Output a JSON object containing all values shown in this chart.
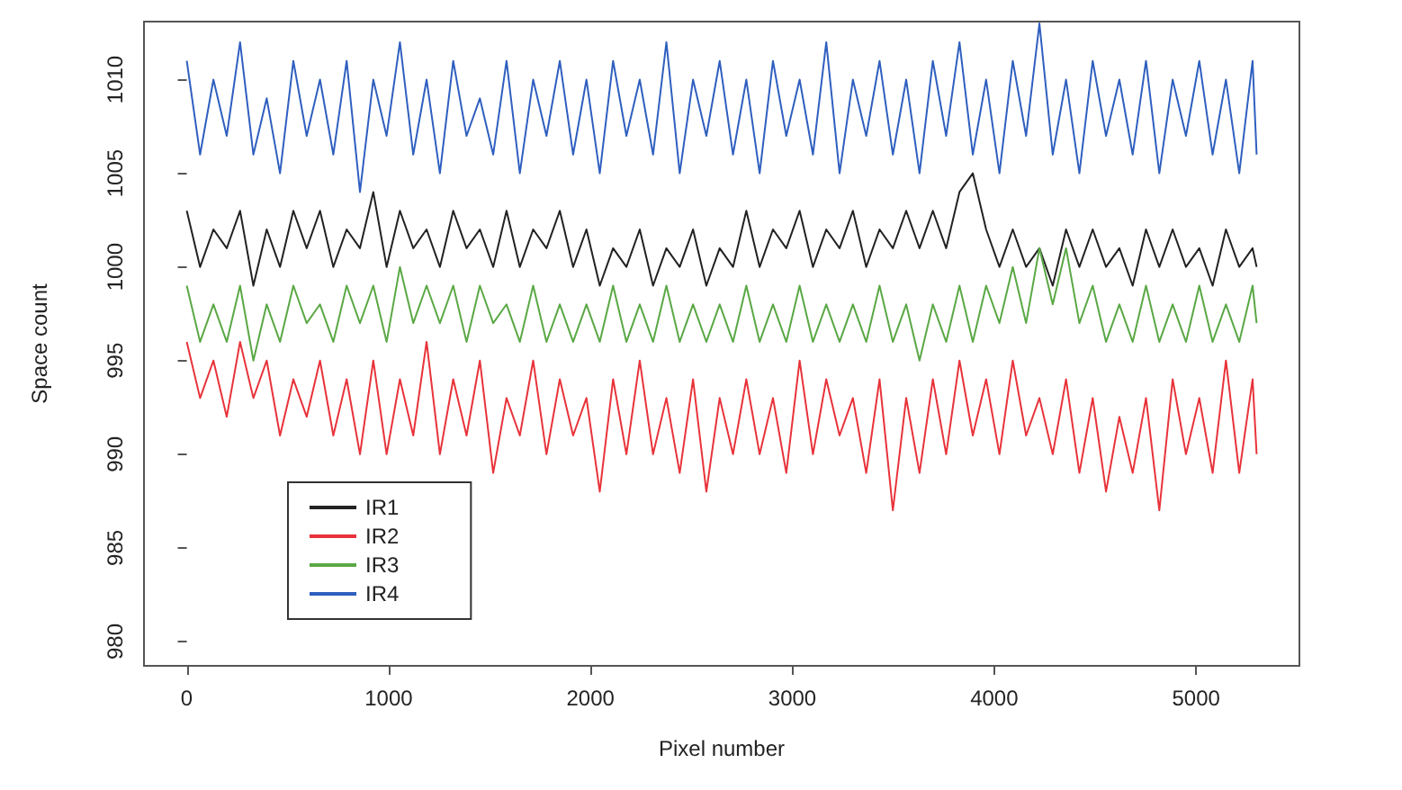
{
  "chart_data": {
    "type": "line",
    "xlabel": "Pixel number",
    "ylabel": "Space count",
    "x": [
      0,
      66,
      132,
      198,
      264,
      330,
      396,
      462,
      528,
      594,
      660,
      726,
      792,
      858,
      924,
      990,
      1056,
      1122,
      1188,
      1254,
      1320,
      1386,
      1452,
      1518,
      1584,
      1650,
      1716,
      1782,
      1848,
      1914,
      1980,
      2046,
      2112,
      2178,
      2244,
      2310,
      2376,
      2442,
      2508,
      2574,
      2640,
      2706,
      2772,
      2838,
      2904,
      2970,
      3036,
      3102,
      3168,
      3234,
      3300,
      3366,
      3432,
      3498,
      3564,
      3630,
      3696,
      3762,
      3828,
      3894,
      3960,
      4026,
      4092,
      4158,
      4224,
      4290,
      4356,
      4422,
      4488,
      4554,
      4620,
      4686,
      4752,
      4818,
      4884,
      4950,
      5016,
      5082,
      5148,
      5214,
      5280,
      5300
    ],
    "series": [
      {
        "name": "IR1",
        "color": "#222222",
        "values": [
          1003,
          1000,
          1002,
          1001,
          1003,
          999,
          1002,
          1000,
          1003,
          1001,
          1003,
          1000,
          1002,
          1001,
          1004,
          1000,
          1003,
          1001,
          1002,
          1000,
          1003,
          1001,
          1002,
          1000,
          1003,
          1000,
          1002,
          1001,
          1003,
          1000,
          1002,
          999,
          1001,
          1000,
          1002,
          999,
          1001,
          1000,
          1002,
          999,
          1001,
          1000,
          1003,
          1000,
          1002,
          1001,
          1003,
          1000,
          1002,
          1001,
          1003,
          1000,
          1002,
          1001,
          1003,
          1001,
          1003,
          1001,
          1004,
          1005,
          1002,
          1000,
          1002,
          1000,
          1001,
          999,
          1002,
          1000,
          1002,
          1000,
          1001,
          999,
          1002,
          1000,
          1002,
          1000,
          1001,
          999,
          1002,
          1000,
          1001,
          1000
        ]
      },
      {
        "name": "IR2",
        "color": "#e8333a",
        "values": [
          996,
          993,
          995,
          992,
          996,
          993,
          995,
          991,
          994,
          992,
          995,
          991,
          994,
          990,
          995,
          990,
          994,
          991,
          996,
          990,
          994,
          991,
          995,
          989,
          993,
          991,
          995,
          990,
          994,
          991,
          993,
          988,
          994,
          990,
          995,
          990,
          993,
          989,
          994,
          988,
          993,
          990,
          994,
          990,
          993,
          989,
          995,
          990,
          994,
          991,
          993,
          989,
          994,
          987,
          993,
          989,
          994,
          990,
          995,
          991,
          994,
          990,
          995,
          991,
          993,
          990,
          994,
          989,
          993,
          988,
          992,
          989,
          993,
          987,
          994,
          990,
          993,
          989,
          995,
          989,
          994,
          990
        ]
      },
      {
        "name": "IR3",
        "color": "#5aa845",
        "values": [
          999,
          996,
          998,
          996,
          999,
          995,
          998,
          996,
          999,
          997,
          998,
          996,
          999,
          997,
          999,
          996,
          1000,
          997,
          999,
          997,
          999,
          996,
          999,
          997,
          998,
          996,
          999,
          996,
          998,
          996,
          998,
          996,
          999,
          996,
          998,
          996,
          999,
          996,
          998,
          996,
          998,
          996,
          999,
          996,
          998,
          996,
          999,
          996,
          998,
          996,
          998,
          996,
          999,
          996,
          998,
          995,
          998,
          996,
          999,
          996,
          999,
          997,
          1000,
          997,
          1001,
          998,
          1001,
          997,
          999,
          996,
          998,
          996,
          999,
          996,
          998,
          996,
          999,
          996,
          998,
          996,
          999,
          997
        ]
      },
      {
        "name": "IR4",
        "color": "#2f5fbf",
        "values": [
          1011,
          1006,
          1010,
          1007,
          1012,
          1006,
          1009,
          1005,
          1011,
          1007,
          1010,
          1006,
          1011,
          1004,
          1010,
          1007,
          1012,
          1006,
          1010,
          1005,
          1011,
          1007,
          1009,
          1006,
          1011,
          1005,
          1010,
          1007,
          1011,
          1006,
          1010,
          1005,
          1011,
          1007,
          1010,
          1006,
          1012,
          1005,
          1010,
          1007,
          1011,
          1006,
          1010,
          1005,
          1011,
          1007,
          1010,
          1006,
          1012,
          1005,
          1010,
          1007,
          1011,
          1006,
          1010,
          1005,
          1011,
          1007,
          1012,
          1006,
          1010,
          1005,
          1011,
          1007,
          1013,
          1006,
          1010,
          1005,
          1011,
          1007,
          1010,
          1006,
          1011,
          1005,
          1010,
          1007,
          1011,
          1006,
          1010,
          1005,
          1011,
          1006
        ]
      }
    ],
    "xlim": [
      -212,
      5512
    ],
    "xticks": [
      0,
      1000,
      2000,
      3000,
      4000,
      5000
    ],
    "ylim": [
      978.7,
      1013.1
    ],
    "yticks": [
      980,
      985,
      990,
      995,
      1000,
      1005,
      1010
    ],
    "grid": false,
    "legend": "bottom left",
    "marker": "none",
    "line_style": "solid"
  }
}
